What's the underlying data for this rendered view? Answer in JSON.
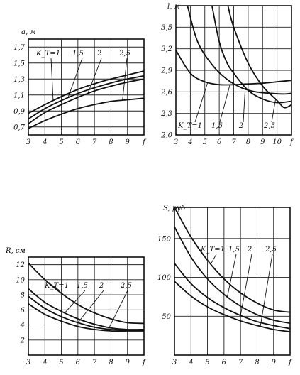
{
  "chart_data": [
    {
      "type": "line",
      "ylabel": "a, м",
      "x_ticks": [
        "3",
        "4",
        "5",
        "6",
        "7",
        "8",
        "9",
        "f"
      ],
      "y_ticks": [
        "0,7",
        "0,9",
        "1,1",
        "1,3",
        "1,5",
        "1,7"
      ],
      "xlim": [
        3,
        10
      ],
      "ylim": [
        0.6,
        1.8
      ],
      "annotations": [
        "K_T=1",
        "1,5",
        "2",
        "2,5"
      ],
      "series": [
        {
          "name": "K_T=1",
          "x": [
            3,
            4,
            5,
            6,
            7,
            8,
            9,
            10
          ],
          "y": [
            0.87,
            0.98,
            1.08,
            1.17,
            1.24,
            1.3,
            1.35,
            1.4
          ]
        },
        {
          "name": "1,5",
          "x": [
            3,
            4,
            5,
            6,
            7,
            8,
            9,
            10
          ],
          "y": [
            0.8,
            0.93,
            1.03,
            1.12,
            1.19,
            1.25,
            1.3,
            1.34
          ]
        },
        {
          "name": "2",
          "x": [
            3,
            4,
            5,
            6,
            7,
            8,
            9,
            10
          ],
          "y": [
            0.74,
            0.88,
            0.98,
            1.07,
            1.15,
            1.21,
            1.26,
            1.3
          ]
        },
        {
          "name": "2,5",
          "x": [
            3,
            4,
            5,
            6,
            7,
            8,
            9,
            10
          ],
          "y": [
            0.68,
            0.78,
            0.86,
            0.93,
            0.98,
            1.02,
            1.04,
            1.06
          ]
        }
      ]
    },
    {
      "type": "line",
      "ylabel": "l, м",
      "x_ticks": [
        "3",
        "4",
        "5",
        "6",
        "7",
        "8",
        "9",
        "10",
        "f"
      ],
      "y_ticks": [
        "2,0",
        "2,3",
        "2,6",
        "2,9",
        "3,2",
        "3,5"
      ],
      "xlim": [
        3,
        11
      ],
      "ylim": [
        2.0,
        3.8
      ],
      "annotations": [
        "K_T=1",
        "1,5",
        "2",
        "2,5"
      ],
      "series": [
        {
          "name": "K_T=1",
          "x": [
            3,
            4,
            5,
            6,
            7,
            8,
            9,
            10,
            11
          ],
          "y": [
            3.18,
            2.86,
            2.74,
            2.7,
            2.7,
            2.71,
            2.72,
            2.74,
            2.76
          ]
        },
        {
          "name": "1,5",
          "x": [
            3.8,
            4.5,
            5.5,
            6.5,
            7.5,
            8.5,
            9.5,
            10.5,
            11
          ],
          "y": [
            3.8,
            3.3,
            2.98,
            2.78,
            2.66,
            2.6,
            2.58,
            2.57,
            2.58
          ]
        },
        {
          "name": "2",
          "x": [
            5.5,
            6,
            6.5,
            7,
            8,
            9,
            10,
            11
          ],
          "y": [
            3.8,
            3.3,
            3.02,
            2.86,
            2.62,
            2.5,
            2.45,
            2.47
          ]
        },
        {
          "name": "2,5",
          "x": [
            6.6,
            7,
            8,
            9,
            10,
            10.5,
            11
          ],
          "y": [
            3.8,
            3.5,
            3.0,
            2.68,
            2.48,
            2.38,
            2.42
          ]
        }
      ]
    },
    {
      "type": "line",
      "ylabel": "R, см",
      "x_ticks": [
        "3",
        "4",
        "5",
        "6",
        "7",
        "8",
        "9",
        "f"
      ],
      "y_ticks": [
        "2",
        "4",
        "6",
        "8",
        "10",
        "12"
      ],
      "xlim": [
        3,
        10
      ],
      "ylim": [
        0,
        13
      ],
      "annotations": [
        "K_T=1",
        "1,5",
        "2",
        "2,5"
      ],
      "series": [
        {
          "name": "K_T=1",
          "x": [
            3,
            4,
            5,
            6,
            7,
            8,
            9,
            10
          ],
          "y": [
            12.2,
            10.0,
            8.2,
            6.7,
            5.6,
            4.8,
            4.3,
            4.2
          ]
        },
        {
          "name": "1,5",
          "x": [
            3,
            4,
            5,
            6,
            7,
            8,
            9,
            10
          ],
          "y": [
            8.8,
            7.0,
            5.8,
            4.8,
            4.1,
            3.6,
            3.4,
            3.4
          ]
        },
        {
          "name": "2",
          "x": [
            3,
            4,
            5,
            6,
            7,
            8,
            9,
            10
          ],
          "y": [
            7.8,
            6.2,
            5.1,
            4.3,
            3.7,
            3.4,
            3.3,
            3.3
          ]
        },
        {
          "name": "2,5",
          "x": [
            3,
            4,
            5,
            6,
            7,
            8,
            9,
            10
          ],
          "y": [
            6.8,
            5.4,
            4.5,
            3.8,
            3.4,
            3.2,
            3.2,
            3.2
          ]
        }
      ]
    },
    {
      "type": "line",
      "ylabel": "S, руб",
      "x_ticks": [
        "3",
        "4",
        "5",
        "6",
        "7",
        "8",
        "9",
        "f"
      ],
      "y_ticks": [
        "50",
        "100",
        "150"
      ],
      "xlim": [
        3,
        10
      ],
      "ylim": [
        0,
        190
      ],
      "annotations": [
        "K_T=1",
        "1,5",
        "2",
        "2,5"
      ],
      "series": [
        {
          "name": "K_T=1",
          "x": [
            3,
            4,
            5,
            6,
            7,
            8,
            9,
            10
          ],
          "y": [
            190,
            152,
            122,
            98,
            80,
            67,
            58,
            55
          ]
        },
        {
          "name": "1,5",
          "x": [
            3,
            4,
            5,
            6,
            7,
            8,
            9,
            10
          ],
          "y": [
            165,
            126,
            98,
            78,
            63,
            52,
            45,
            41
          ]
        },
        {
          "name": "2",
          "x": [
            3,
            4,
            5,
            6,
            7,
            8,
            9,
            10
          ],
          "y": [
            118,
            92,
            74,
            61,
            51,
            43,
            38,
            34
          ]
        },
        {
          "name": "2,5",
          "x": [
            3,
            4,
            5,
            6,
            7,
            8,
            9,
            10
          ],
          "y": [
            95,
            76,
            62,
            52,
            44,
            38,
            33,
            30
          ]
        }
      ]
    }
  ]
}
